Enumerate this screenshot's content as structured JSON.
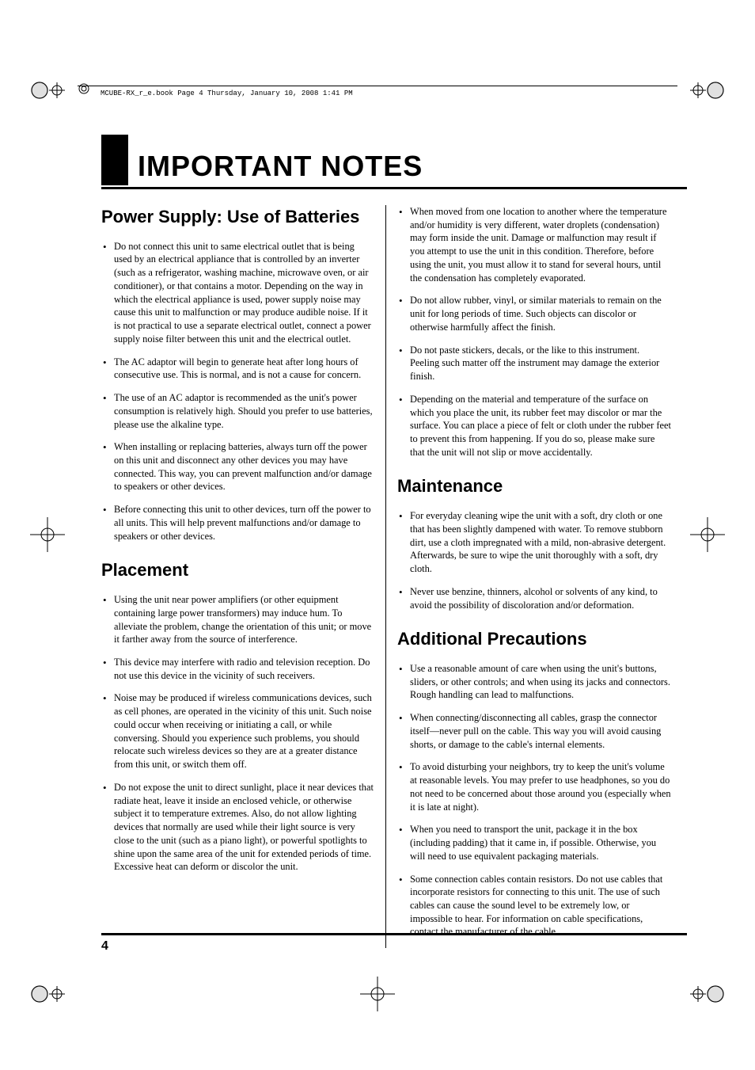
{
  "meta": {
    "header_line": "MCUBE-RX_r_e.book  Page 4  Thursday, January 10, 2008  1:41 PM"
  },
  "title": "IMPORTANT NOTES",
  "page_number": "4",
  "colors": {
    "text": "#000000",
    "background": "#ffffff",
    "rule": "#000000"
  },
  "left_column": [
    {
      "heading": "Power Supply: Use of Batteries",
      "items": [
        "Do not connect this unit to same electrical outlet that is being used by an electrical appliance that is controlled by an inverter (such as a refrigerator, washing machine, microwave oven, or air conditioner), or that contains a motor. Depending on the way in which the electrical appliance is used, power supply noise may cause this unit to malfunction or may produce audible noise. If it is not practical to use a separate electrical outlet, connect a power supply noise filter between this unit and the electrical outlet.",
        "The AC adaptor will begin to generate heat after long hours of consecutive use. This is normal, and is not a cause for concern.",
        "The use of an AC adaptor is recommended as the unit's power consumption is relatively high. Should you prefer to use batteries, please use the alkaline type.",
        "When installing or replacing batteries, always turn off the power on this unit and disconnect any other devices you may have connected. This way, you can prevent malfunction and/or damage to speakers or other devices.",
        "Before connecting this unit to other devices, turn off the power to all units. This will help prevent malfunctions and/or damage to speakers or other devices."
      ]
    },
    {
      "heading": "Placement",
      "items": [
        "Using the unit near power amplifiers (or other equipment containing large power transformers) may induce hum. To alleviate the problem, change the orientation of this unit; or move it farther away from the source of interference.",
        "This device may interfere with radio and television reception. Do not use this device in the vicinity of such receivers.",
        "Noise may be produced if wireless communications devices, such as cell phones, are operated in the vicinity of this unit. Such noise could occur when receiving or initiating a call, or while conversing. Should you experience such problems, you should relocate such wireless devices so they are at a greater distance from this unit, or switch them off.",
        "Do not expose the unit to direct sunlight, place it near devices that radiate heat, leave it inside an enclosed vehicle, or otherwise subject it to temperature extremes. Also, do not allow lighting devices that normally are used while their light source is very close to the unit (such as a piano light), or powerful spotlights to shine upon the same area of the unit for extended periods of time. Excessive heat can deform or discolor the unit."
      ]
    }
  ],
  "right_column": [
    {
      "heading": "",
      "items": [
        "When moved from one location to another where the temperature and/or humidity is very different, water droplets (condensation) may form inside the unit. Damage or malfunction may result if you attempt to use the unit in this condition. Therefore, before using the unit, you must allow it to stand for several hours, until the condensation has completely evaporated.",
        "Do not allow rubber, vinyl, or similar materials to remain on the unit for long periods of time. Such objects can discolor or otherwise harmfully affect the finish.",
        "Do not paste stickers, decals, or the like to this instrument. Peeling such matter off the instrument may damage the exterior finish.",
        "Depending on the material and temperature of the surface on which you place the unit, its rubber feet may discolor or mar the surface.\nYou can place a piece of felt or cloth under the rubber feet to prevent this from happening. If you do so, please make sure that the unit will not slip or move accidentally."
      ]
    },
    {
      "heading": "Maintenance",
      "items": [
        "For everyday cleaning wipe the unit with a soft, dry cloth or one that has been slightly dampened with water. To remove stubborn dirt, use a cloth impregnated with a mild, non-abrasive detergent. Afterwards, be sure to wipe the unit thoroughly with a soft, dry cloth.",
        "Never use benzine, thinners, alcohol or solvents of any kind, to avoid the possibility of discoloration and/or deformation."
      ]
    },
    {
      "heading": "Additional Precautions",
      "items": [
        "Use a reasonable amount of care when using the unit's buttons, sliders, or other controls; and when using its jacks and connectors. Rough handling can lead to malfunctions.",
        "When connecting/disconnecting all cables, grasp the connector itself—never pull on the cable. This way you will avoid causing shorts, or damage to the cable's internal elements.",
        "To avoid disturbing your neighbors, try to keep the unit's volume at reasonable levels. You may prefer to use headphones, so you do not need to be concerned about those around you (especially when it is late at night).",
        "When you need to transport the unit, package it in the box (including padding) that it came in, if possible. Otherwise, you will need to use equivalent packaging materials.",
        "Some connection cables contain resistors. Do not use cables that incorporate resistors for connecting to this unit. The use of such cables can cause the sound level to be extremely low, or impossible to hear. For information on cable specifications, contact the manufacturer of the cable."
      ]
    }
  ]
}
